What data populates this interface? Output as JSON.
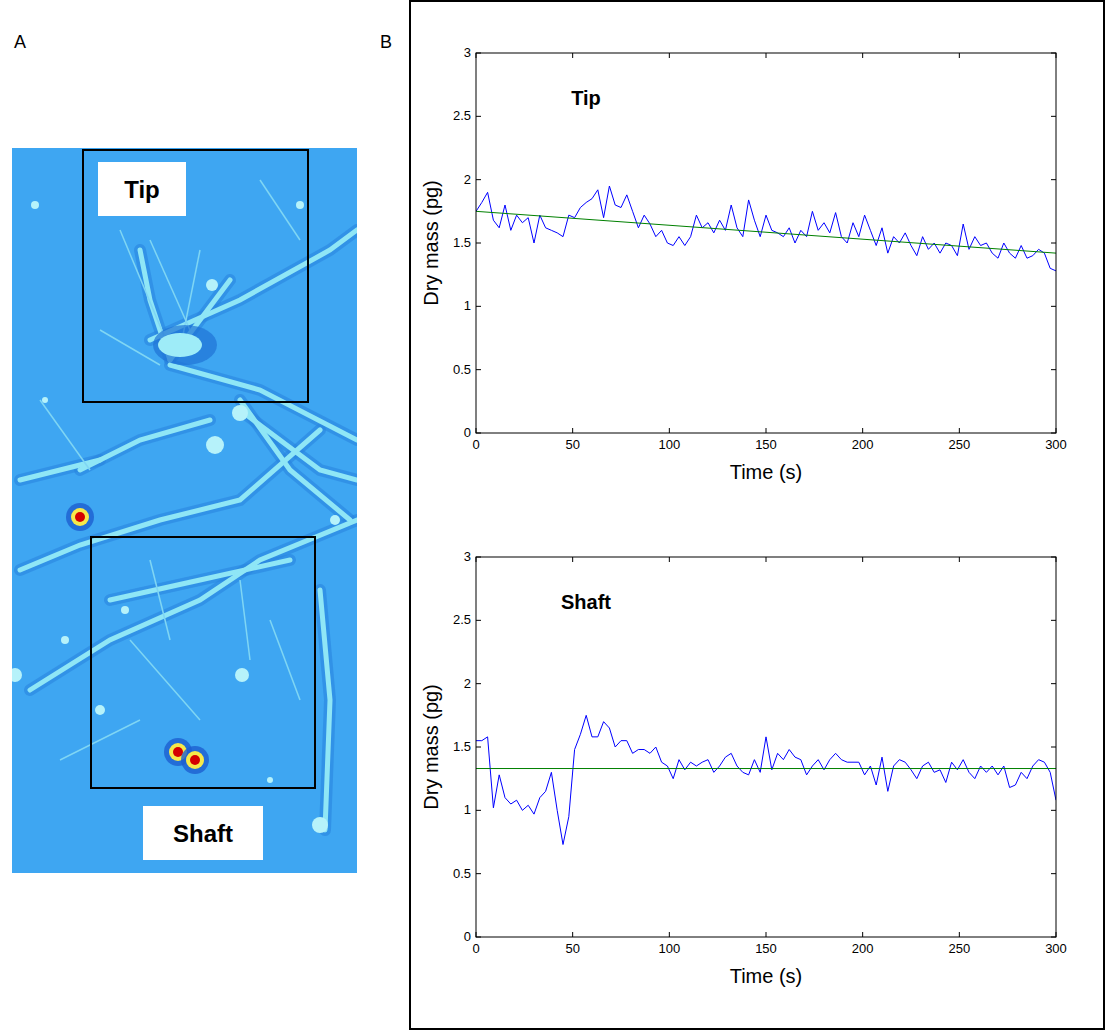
{
  "figure": {
    "panel_labels": [
      "A",
      "B"
    ],
    "image_labels": [
      "Tip",
      "Shaft"
    ]
  },
  "chart_data": [
    {
      "type": "line",
      "title": "Tip",
      "x_label": "Time (s)",
      "y_label": "Dry mass (pg)",
      "xlim": [
        0,
        300
      ],
      "ylim": [
        0,
        3
      ],
      "xticks": [
        0,
        50,
        100,
        150,
        200,
        250,
        300
      ],
      "yticks": [
        0,
        0.5,
        1,
        1.5,
        2,
        2.5,
        3
      ],
      "x": [
        0,
        3,
        6,
        9,
        12,
        15,
        18,
        21,
        24,
        27,
        30,
        33,
        36,
        39,
        42,
        45,
        48,
        51,
        54,
        57,
        60,
        63,
        66,
        69,
        72,
        75,
        78,
        81,
        84,
        87,
        90,
        93,
        96,
        99,
        102,
        105,
        108,
        111,
        114,
        117,
        120,
        123,
        126,
        129,
        132,
        135,
        138,
        141,
        144,
        147,
        150,
        153,
        156,
        159,
        162,
        165,
        168,
        171,
        174,
        177,
        180,
        183,
        186,
        189,
        192,
        195,
        198,
        201,
        204,
        207,
        210,
        213,
        216,
        219,
        222,
        225,
        228,
        231,
        234,
        237,
        240,
        243,
        246,
        249,
        252,
        255,
        258,
        261,
        264,
        267,
        270,
        273,
        276,
        279,
        282,
        285,
        288,
        291,
        294,
        297,
        300
      ],
      "series": [
        {
          "color": "#0000ff",
          "values": [
            1.75,
            1.82,
            1.9,
            1.68,
            1.62,
            1.8,
            1.6,
            1.72,
            1.66,
            1.7,
            1.5,
            1.72,
            1.62,
            1.6,
            1.58,
            1.55,
            1.72,
            1.7,
            1.78,
            1.82,
            1.85,
            1.92,
            1.7,
            1.95,
            1.8,
            1.78,
            1.88,
            1.75,
            1.62,
            1.72,
            1.65,
            1.55,
            1.6,
            1.5,
            1.48,
            1.55,
            1.48,
            1.55,
            1.72,
            1.62,
            1.66,
            1.58,
            1.68,
            1.6,
            1.8,
            1.62,
            1.55,
            1.84,
            1.68,
            1.55,
            1.72,
            1.6,
            1.58,
            1.55,
            1.62,
            1.5,
            1.6,
            1.55,
            1.75,
            1.6,
            1.66,
            1.58,
            1.74,
            1.55,
            1.5,
            1.66,
            1.55,
            1.72,
            1.6,
            1.48,
            1.62,
            1.42,
            1.55,
            1.5,
            1.58,
            1.48,
            1.4,
            1.55,
            1.45,
            1.5,
            1.42,
            1.5,
            1.48,
            1.4,
            1.65,
            1.45,
            1.55,
            1.48,
            1.5,
            1.42,
            1.38,
            1.5,
            1.42,
            1.38,
            1.48,
            1.38,
            1.4,
            1.45,
            1.42,
            1.3,
            1.28
          ]
        },
        {
          "color": "#008000",
          "x": [
            0,
            300
          ],
          "values": [
            1.75,
            1.42
          ]
        }
      ]
    },
    {
      "type": "line",
      "title": "Shaft",
      "x_label": "Time (s)",
      "y_label": "Dry mass (pg)",
      "xlim": [
        0,
        300
      ],
      "ylim": [
        0,
        3
      ],
      "xticks": [
        0,
        50,
        100,
        150,
        200,
        250,
        300
      ],
      "yticks": [
        0,
        0.5,
        1,
        1.5,
        2,
        2.5,
        3
      ],
      "x": [
        0,
        3,
        6,
        9,
        12,
        15,
        18,
        21,
        24,
        27,
        30,
        33,
        36,
        39,
        42,
        45,
        48,
        51,
        54,
        57,
        60,
        63,
        66,
        69,
        72,
        75,
        78,
        81,
        84,
        87,
        90,
        93,
        96,
        99,
        102,
        105,
        108,
        111,
        114,
        117,
        120,
        123,
        126,
        129,
        132,
        135,
        138,
        141,
        144,
        147,
        150,
        153,
        156,
        159,
        162,
        165,
        168,
        171,
        174,
        177,
        180,
        183,
        186,
        189,
        192,
        195,
        198,
        201,
        204,
        207,
        210,
        213,
        216,
        219,
        222,
        225,
        228,
        231,
        234,
        237,
        240,
        243,
        246,
        249,
        252,
        255,
        258,
        261,
        264,
        267,
        270,
        273,
        276,
        279,
        282,
        285,
        288,
        291,
        294,
        297,
        300
      ],
      "series": [
        {
          "color": "#0000ff",
          "values": [
            1.55,
            1.55,
            1.58,
            1.02,
            1.28,
            1.1,
            1.05,
            1.08,
            1.0,
            1.04,
            0.97,
            1.1,
            1.15,
            1.3,
            1.0,
            0.73,
            0.95,
            1.48,
            1.6,
            1.75,
            1.58,
            1.58,
            1.7,
            1.65,
            1.5,
            1.55,
            1.55,
            1.45,
            1.48,
            1.48,
            1.45,
            1.5,
            1.38,
            1.35,
            1.25,
            1.4,
            1.32,
            1.38,
            1.35,
            1.38,
            1.4,
            1.3,
            1.35,
            1.42,
            1.45,
            1.35,
            1.3,
            1.28,
            1.4,
            1.3,
            1.58,
            1.32,
            1.45,
            1.4,
            1.48,
            1.42,
            1.4,
            1.28,
            1.35,
            1.4,
            1.32,
            1.4,
            1.45,
            1.4,
            1.38,
            1.38,
            1.38,
            1.28,
            1.35,
            1.2,
            1.42,
            1.15,
            1.35,
            1.4,
            1.38,
            1.32,
            1.25,
            1.35,
            1.38,
            1.3,
            1.32,
            1.22,
            1.38,
            1.32,
            1.4,
            1.3,
            1.25,
            1.35,
            1.3,
            1.35,
            1.28,
            1.35,
            1.18,
            1.2,
            1.3,
            1.25,
            1.35,
            1.4,
            1.38,
            1.3,
            1.08
          ]
        },
        {
          "color": "#008000",
          "x": [
            0,
            300
          ],
          "values": [
            1.33,
            1.33
          ]
        }
      ]
    }
  ]
}
